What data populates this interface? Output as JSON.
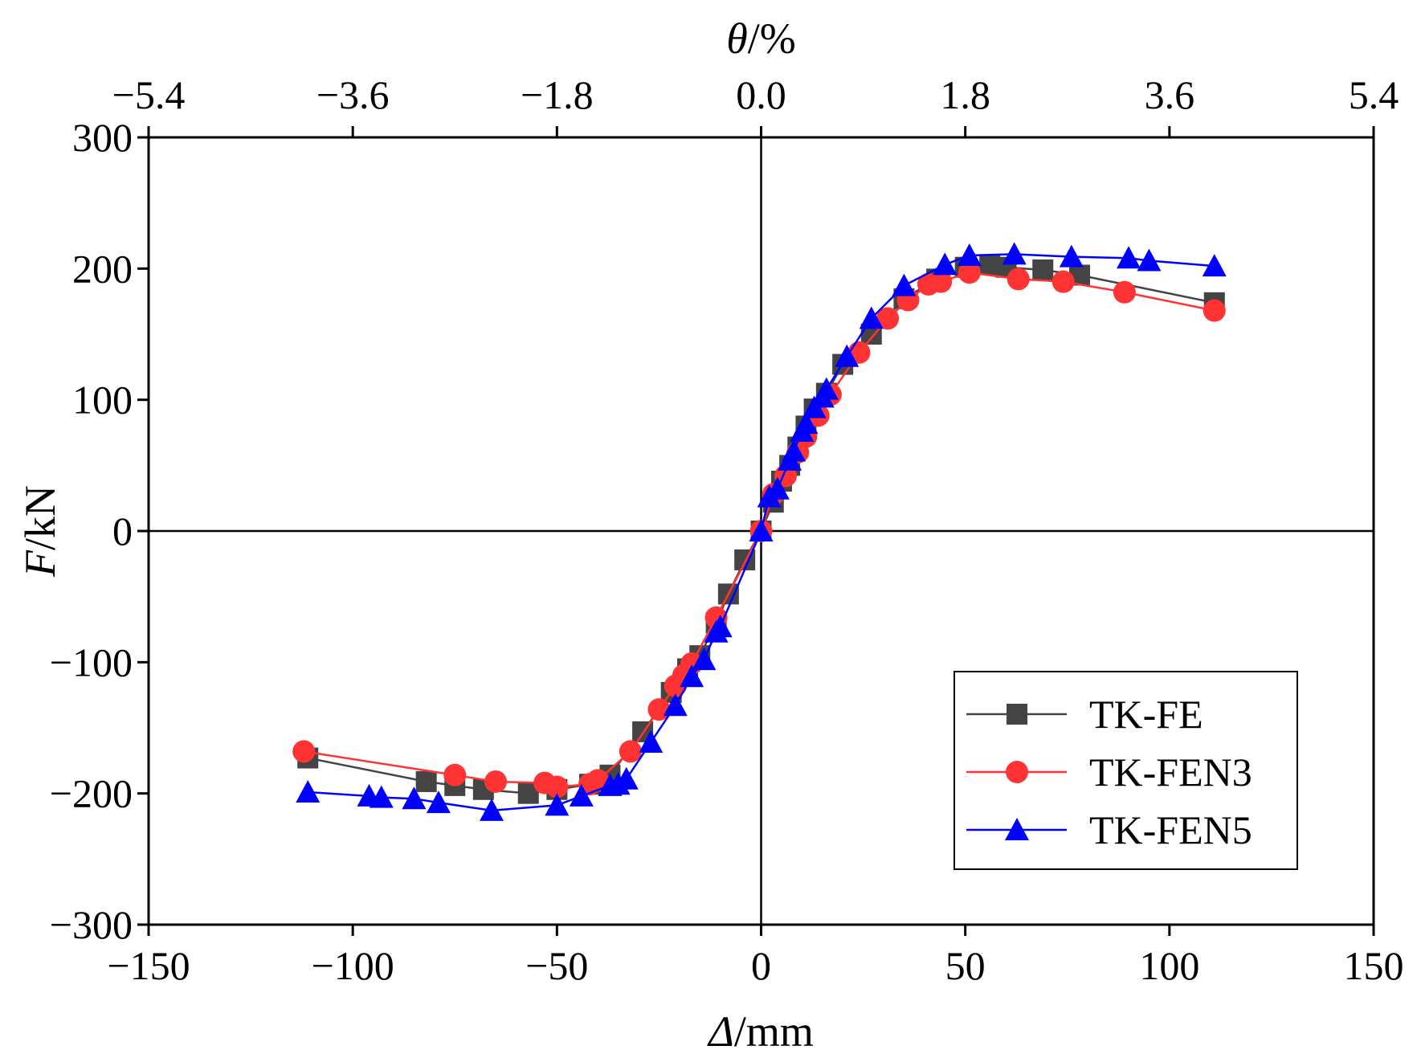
{
  "chart_data": {
    "type": "line",
    "title": "",
    "xlabel": {
      "italic": "Δ",
      "unit": "/mm"
    },
    "ylabel": {
      "italic": "F",
      "unit": "/kN"
    },
    "x2label": {
      "italic": "θ",
      "unit": "/%"
    },
    "xlim": [
      -150,
      150
    ],
    "ylim": [
      -300,
      300
    ],
    "x2lim": [
      -5.4,
      5.4
    ],
    "xticks": [
      -150,
      -100,
      -50,
      0,
      50,
      100,
      150
    ],
    "xtick_labels": [
      "−150",
      "−100",
      "−50",
      "0",
      "50",
      "100",
      "150"
    ],
    "yticks": [
      -300,
      -200,
      -100,
      0,
      100,
      200,
      300
    ],
    "ytick_labels": [
      "−300",
      "−200",
      "−100",
      "0",
      "100",
      "200",
      "300"
    ],
    "x2ticks": [
      -5.4,
      -3.6,
      -1.8,
      0.0,
      1.8,
      3.6,
      5.4
    ],
    "x2tick_labels": [
      "−5.4",
      "−3.6",
      "−1.8",
      "0.0",
      "1.8",
      "3.6",
      "5.4"
    ],
    "grid": false,
    "zero_lines": true,
    "legend_position": "bottom-right",
    "series": [
      {
        "name": "TK-FE",
        "color": "#444444",
        "marker": "square",
        "x": [
          -111,
          -82,
          -75,
          -68,
          -57,
          -50,
          -42,
          -37,
          -29,
          -22,
          -18,
          -15,
          -11,
          -8,
          -4,
          0,
          3,
          5,
          7,
          9,
          11,
          13,
          16,
          20,
          27,
          35,
          43,
          50,
          56,
          60,
          69,
          78,
          111
        ],
        "y": [
          -173,
          -191,
          -194,
          -197,
          -200,
          -197,
          -193,
          -186,
          -153,
          -123,
          -105,
          -95,
          -70,
          -48,
          -22,
          0,
          22,
          38,
          50,
          64,
          80,
          93,
          105,
          127,
          150,
          177,
          192,
          201,
          203,
          201,
          199,
          195,
          174
        ]
      },
      {
        "name": "TK-FEN3",
        "color": "#ff3333",
        "marker": "circle",
        "x": [
          -112,
          -75,
          -65,
          -53,
          -50,
          -42,
          -40,
          -32,
          -25,
          -21,
          -19,
          -17,
          -11,
          0,
          3,
          6,
          9,
          11,
          14,
          17,
          24,
          31,
          36,
          41,
          44,
          51,
          63,
          74,
          89,
          111
        ],
        "y": [
          -168,
          -186,
          -191,
          -192,
          -195,
          -193,
          -190,
          -168,
          -136,
          -118,
          -110,
          -101,
          -66,
          0,
          28,
          42,
          60,
          72,
          88,
          104,
          136,
          162,
          176,
          188,
          190,
          197,
          192,
          190,
          182,
          168
        ]
      },
      {
        "name": "TK-FEN5",
        "color": "#0000ff",
        "marker": "triangle",
        "x": [
          -111,
          -96,
          -93,
          -85,
          -79,
          -66,
          -50,
          -44,
          -37,
          -35,
          -33,
          -27,
          -21,
          -17,
          -14,
          -11,
          -10,
          0,
          2,
          4,
          7,
          8,
          10,
          11,
          13,
          15,
          16,
          21,
          27,
          35,
          45,
          51,
          62,
          76,
          90,
          95,
          111
        ],
        "y": [
          -199,
          -202,
          -203,
          -204,
          -207,
          -213,
          -209,
          -202,
          -194,
          -193,
          -189,
          -161,
          -133,
          -111,
          -98,
          -77,
          -73,
          0,
          26,
          32,
          54,
          61,
          76,
          82,
          94,
          102,
          108,
          133,
          162,
          187,
          203,
          210,
          211,
          209,
          208,
          206,
          202
        ]
      }
    ]
  }
}
